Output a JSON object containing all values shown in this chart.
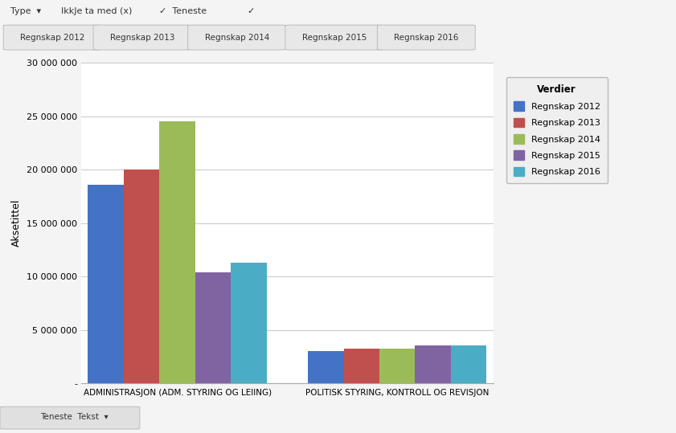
{
  "categories": [
    "ADMINISTRASJON (ADM. STYRING OG LEIING)",
    "POLITISK STYRING, KONTROLL OG REVISJON"
  ],
  "series": [
    {
      "name": "Regnskap 2012",
      "color": "#4472C4",
      "values": [
        18600000,
        3000000
      ]
    },
    {
      "name": "Regnskap 2013",
      "color": "#C0504D",
      "values": [
        20000000,
        3200000
      ]
    },
    {
      "name": "Regnskap 2014",
      "color": "#9BBB59",
      "values": [
        24500000,
        3200000
      ]
    },
    {
      "name": "Regnskap 2015",
      "color": "#8064A2",
      "values": [
        10350000,
        3550000
      ]
    },
    {
      "name": "Regnskap 2016",
      "color": "#4BACC6",
      "values": [
        11300000,
        3500000
      ]
    }
  ],
  "ylabel": "Aksetittel",
  "ylim": [
    0,
    30000000
  ],
  "yticks": [
    0,
    5000000,
    10000000,
    15000000,
    20000000,
    25000000,
    30000000
  ],
  "legend_title": "Verdier",
  "background_color": "#f4f4f4",
  "plot_bg_color": "#ffffff",
  "grid_color": "#cccccc",
  "filter_row1": [
    "Type  ▾",
    "IkkJe ta med (x)",
    "✓  Teneste",
    "✓"
  ],
  "filter_row2": [
    "Regnskap 2012",
    "Regnskap 2013",
    "Regnskap 2014",
    "Regnskap 2015",
    "Regnskap 2016"
  ],
  "footer_text": "Teneste  Tekst  ▾"
}
